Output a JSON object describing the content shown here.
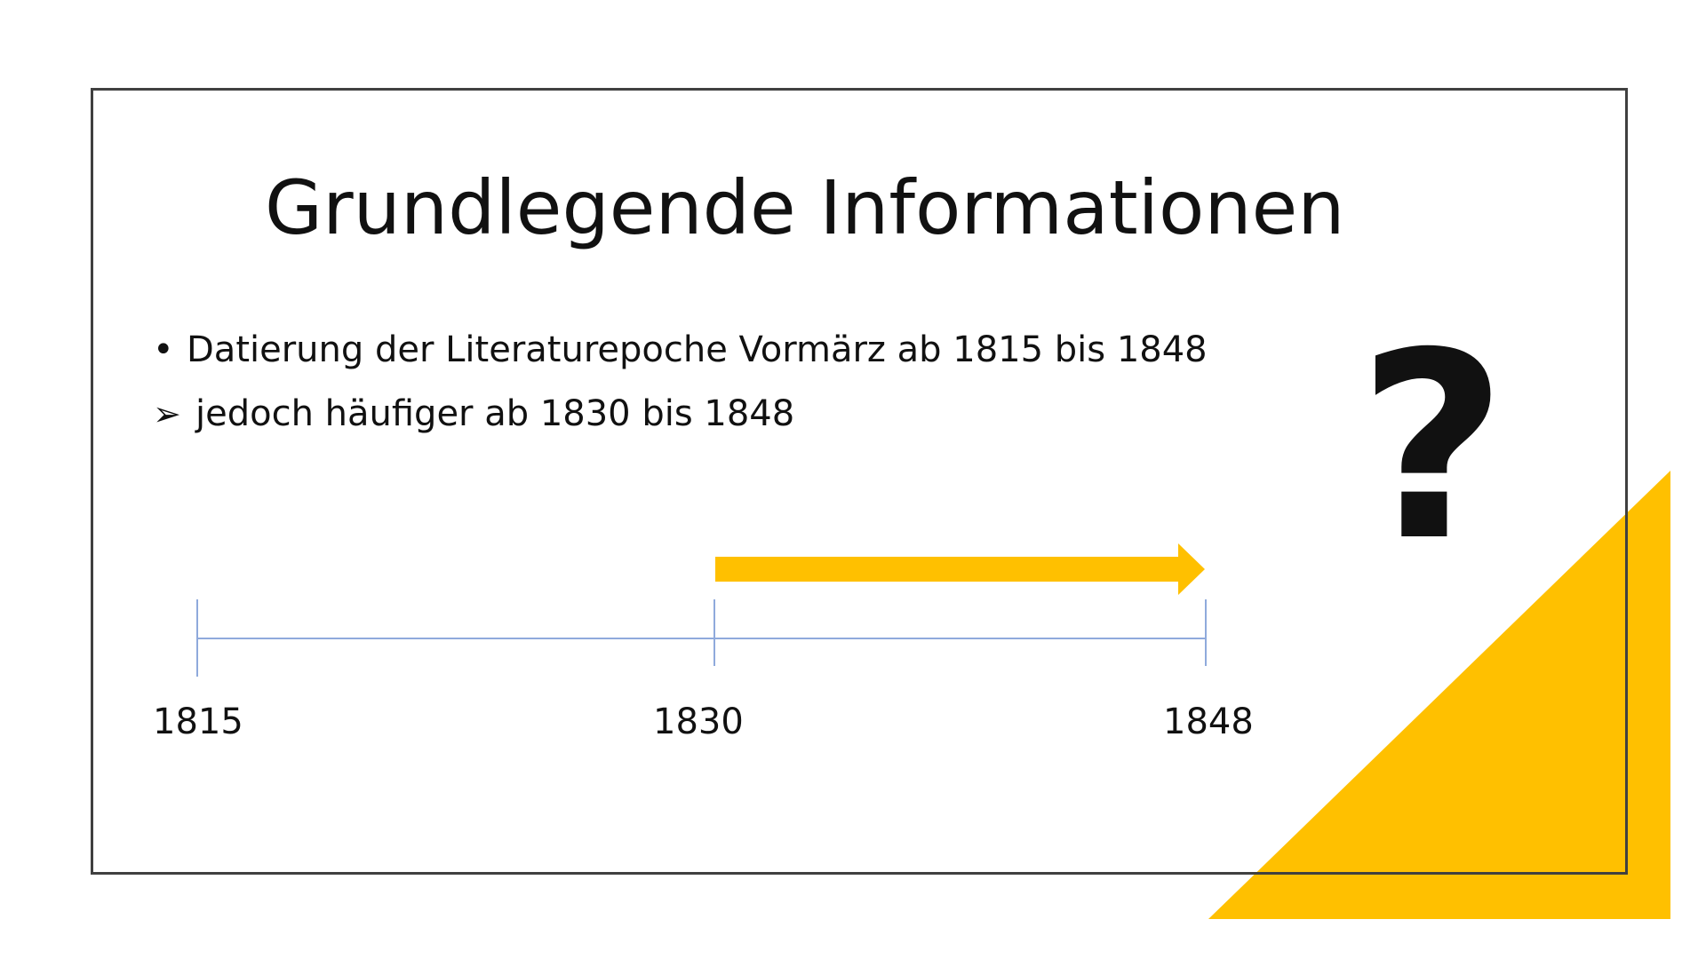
{
  "slide": {
    "title": "Grundlegende Informationen",
    "bullets": [
      {
        "marker": "•",
        "text": "Datierung der Literaturepoche Vormärz ab 1815 bis 1848"
      },
      {
        "marker": "➢",
        "text": "jedoch häufiger ab 1830 bis 1848"
      }
    ],
    "question_mark": "?"
  },
  "timeline": {
    "start": "1815",
    "middle": "1830",
    "end": "1848",
    "highlight_from": "1830",
    "highlight_to": "1848"
  },
  "colors": {
    "accent": "#FFC000",
    "timeline_line": "#8FAADC",
    "frame": "#404040",
    "text": "#111111"
  }
}
